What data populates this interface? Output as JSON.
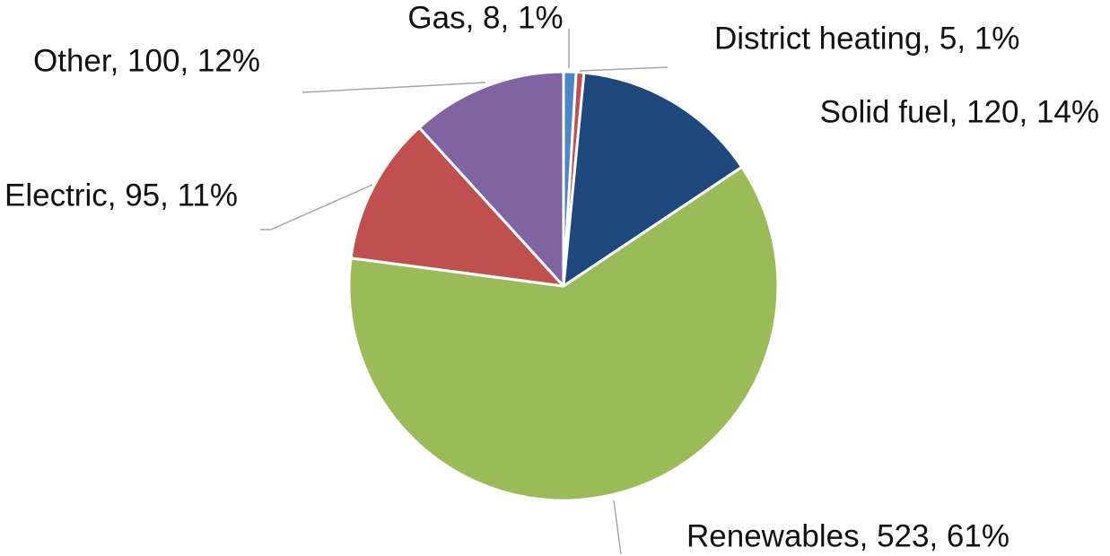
{
  "chart_data": {
    "type": "pie",
    "values": [
      8,
      5,
      120,
      523,
      95,
      100
    ],
    "value_labels": [
      "Gas, 8, 1%",
      "District heating, 5, 1%",
      "Solid fuel, 120, 14%",
      "Renewables, 523, 61%",
      "Electric, 95, 11%",
      "Other, 100, 12%"
    ],
    "colors": [
      "#4a86c8",
      "#c0504d",
      "#1f497d",
      "#9bbb59",
      "#c0504d",
      "#8064a2"
    ]
  }
}
